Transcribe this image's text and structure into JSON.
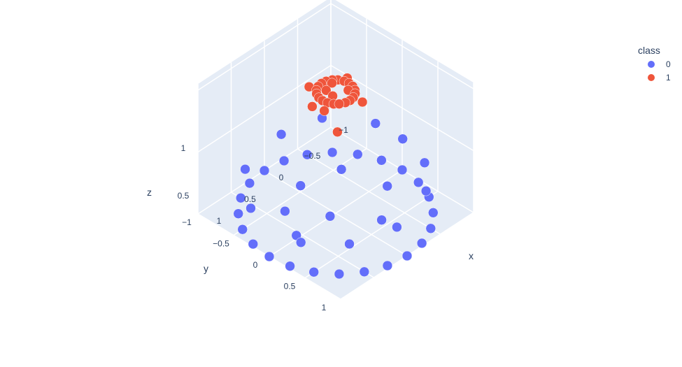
{
  "legend": {
    "title": "class",
    "items": [
      {
        "label": "0",
        "color": "#636efa"
      },
      {
        "label": "1",
        "color": "#ef553b"
      }
    ]
  },
  "chart_data": {
    "type": "scatter",
    "dimensions": 3,
    "axes": {
      "x": {
        "title": "x",
        "ticks": [
          "1",
          "0.5",
          "0",
          "−0.5",
          "−1"
        ]
      },
      "y": {
        "title": "y",
        "ticks": [
          "1",
          "0.5",
          "0",
          "−0.5",
          "−1"
        ]
      },
      "z": {
        "title": "z",
        "ticks": [
          "0.5",
          "1"
        ]
      }
    },
    "legend_placement": "top-right",
    "series": [
      {
        "name": "0",
        "color": "#636efa",
        "points": [
          [
            -1.0,
            0.0,
            0.0
          ],
          [
            -0.966,
            0.259,
            0.0
          ],
          [
            -0.866,
            0.5,
            0.0
          ],
          [
            -0.707,
            0.707,
            0.0
          ],
          [
            -0.5,
            0.866,
            0.0
          ],
          [
            -0.259,
            0.966,
            0.0
          ],
          [
            0.0,
            1.0,
            0.0
          ],
          [
            0.259,
            0.966,
            0.0
          ],
          [
            0.5,
            0.866,
            0.0
          ],
          [
            0.707,
            0.707,
            0.0
          ],
          [
            0.866,
            0.5,
            0.0
          ],
          [
            0.966,
            0.259,
            0.0
          ],
          [
            1.0,
            0.0,
            0.0
          ],
          [
            0.966,
            -0.259,
            0.0
          ],
          [
            0.866,
            -0.5,
            0.0
          ],
          [
            0.707,
            -0.707,
            0.0
          ],
          [
            0.5,
            -0.866,
            0.0
          ],
          [
            0.259,
            -0.966,
            0.0
          ],
          [
            0.0,
            -1.0,
            0.0
          ],
          [
            -0.259,
            -0.966,
            0.0
          ],
          [
            -0.5,
            -0.866,
            0.0
          ],
          [
            -0.707,
            -0.707,
            0.0
          ],
          [
            -0.866,
            -0.5,
            0.0
          ],
          [
            -0.966,
            -0.259,
            0.0
          ],
          [
            -0.9,
            0.1,
            0.32
          ],
          [
            -0.8,
            0.5,
            0.3
          ],
          [
            -0.5,
            0.8,
            0.28
          ],
          [
            0.1,
            0.95,
            0.25
          ],
          [
            0.6,
            0.75,
            0.22
          ],
          [
            0.9,
            0.35,
            0.2
          ],
          [
            0.85,
            -0.4,
            0.2
          ],
          [
            0.45,
            -0.85,
            0.22
          ],
          [
            -0.2,
            -0.95,
            0.24
          ],
          [
            -0.6,
            -0.75,
            0.3
          ],
          [
            -0.92,
            -0.3,
            0.3
          ],
          [
            0.3,
            0.2,
            0.15
          ],
          [
            -0.3,
            -0.2,
            0.18
          ],
          [
            0.1,
            -0.4,
            0.12
          ],
          [
            -0.4,
            0.35,
            0.2
          ],
          [
            0.55,
            -0.2,
            0.14
          ],
          [
            -0.1,
            0.55,
            0.1
          ],
          [
            0.7,
            0.1,
            0.1
          ]
        ]
      },
      {
        "name": "1",
        "color": "#ef553b",
        "points": [
          [
            0.2,
            0.0,
            0.98
          ],
          [
            0.19,
            0.06,
            0.98
          ],
          [
            0.16,
            0.12,
            0.98
          ],
          [
            0.12,
            0.16,
            0.98
          ],
          [
            0.06,
            0.19,
            0.98
          ],
          [
            0.0,
            0.2,
            0.98
          ],
          [
            -0.06,
            0.19,
            0.98
          ],
          [
            -0.12,
            0.16,
            0.98
          ],
          [
            -0.16,
            0.12,
            0.98
          ],
          [
            -0.19,
            0.06,
            0.98
          ],
          [
            -0.2,
            0.0,
            0.98
          ],
          [
            -0.19,
            -0.06,
            0.98
          ],
          [
            -0.16,
            -0.12,
            0.98
          ],
          [
            -0.12,
            -0.16,
            0.98
          ],
          [
            -0.06,
            -0.19,
            0.98
          ],
          [
            0.0,
            -0.2,
            0.98
          ],
          [
            0.06,
            -0.19,
            0.98
          ],
          [
            0.12,
            -0.16,
            0.98
          ],
          [
            0.16,
            -0.12,
            0.98
          ],
          [
            0.19,
            -0.06,
            0.98
          ],
          [
            0.1,
            0.05,
            1.0
          ],
          [
            -0.08,
            0.1,
            1.0
          ],
          [
            -0.05,
            -0.1,
            1.0
          ],
          [
            0.08,
            -0.06,
            1.0
          ],
          [
            0.28,
            0.1,
            0.96
          ],
          [
            -0.1,
            0.28,
            0.96
          ],
          [
            -0.28,
            -0.1,
            0.96
          ],
          [
            0.1,
            -0.28,
            0.96
          ],
          [
            0.3,
            -0.05,
            0.95
          ],
          [
            0.35,
            0.35,
            0.9
          ]
        ]
      }
    ]
  }
}
